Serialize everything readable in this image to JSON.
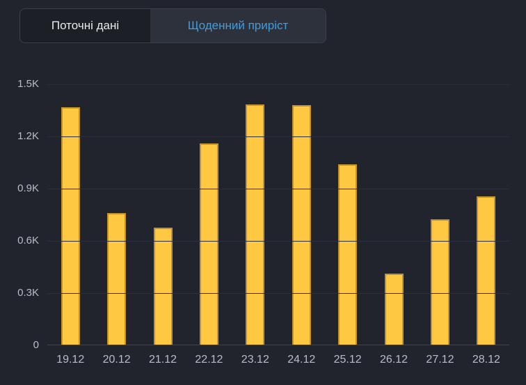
{
  "tabs": {
    "current_data_label": "Поточні дані",
    "daily_increase_label": "Щоденний приріст",
    "active_tab": "daily_increase"
  },
  "colors": {
    "page_bg": "#21242C",
    "tabs_well_bg": "#1C1F26",
    "tab_border": "#3B404A",
    "active_tab_bg": "#2C313C",
    "active_tab_text": "#3F9EE0",
    "inactive_tab_text": "#E8EAEE",
    "gridline": "#2B2F39",
    "baseline": "#3E434E",
    "axis_label": "#B9BDC7",
    "bar_fill": "#FFC843",
    "bar_border": "#C2932E"
  },
  "chart_data": {
    "type": "bar",
    "title": "",
    "xlabel": "",
    "ylabel": "",
    "categories": [
      "19.12",
      "20.12",
      "21.12",
      "22.12",
      "23.12",
      "24.12",
      "25.12",
      "26.12",
      "27.12",
      "28.12"
    ],
    "values": [
      1369,
      760,
      676,
      1160,
      1384,
      1381,
      1040,
      413,
      722,
      856
    ],
    "ylim": [
      0,
      1500
    ],
    "yticks": [
      {
        "label": "0",
        "value": 0
      },
      {
        "label": "0.3K",
        "value": 300
      },
      {
        "label": "0.6K",
        "value": 600
      },
      {
        "label": "0.9K",
        "value": 900
      },
      {
        "label": "1.2K",
        "value": 1200
      },
      {
        "label": "1.5K",
        "value": 1500
      }
    ],
    "grid": true,
    "legend": "none",
    "bar_color": "#FFC843"
  }
}
